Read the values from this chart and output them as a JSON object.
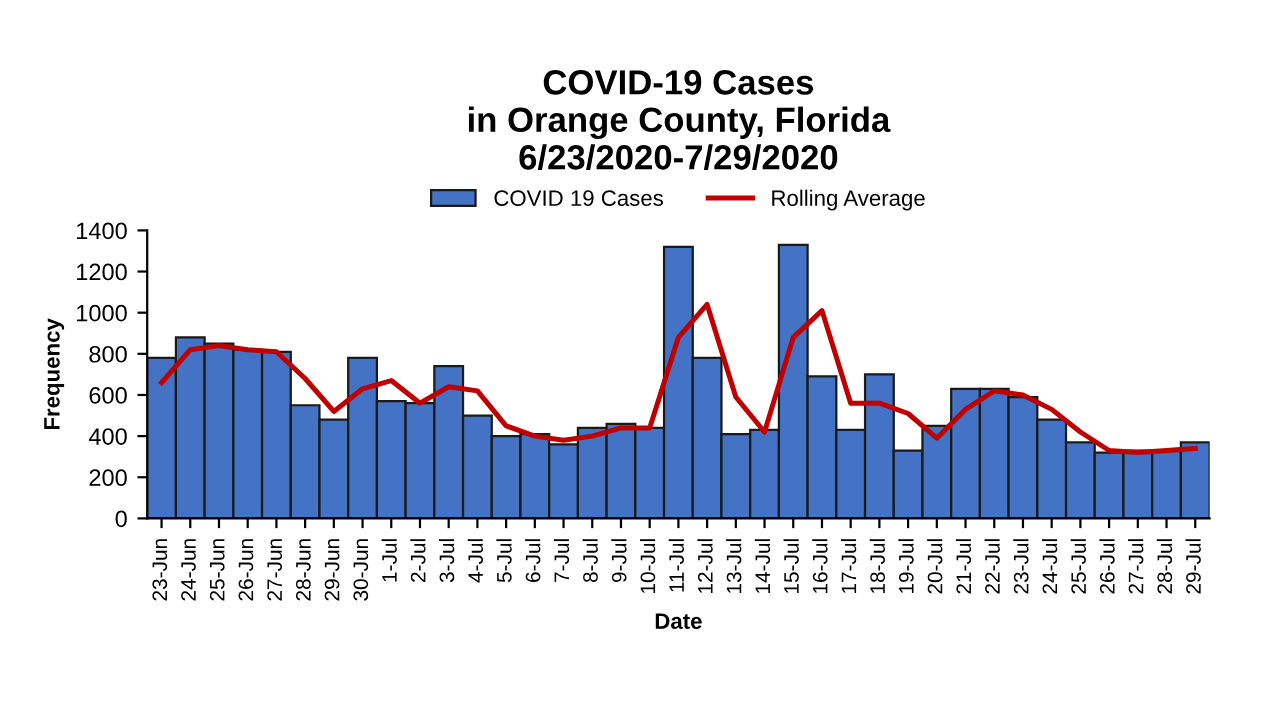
{
  "chart_data": {
    "type": "bar",
    "title": "COVID-19 Cases\nin Orange County, Florida\n6/23/2020-7/29/2020",
    "xlabel": "Date",
    "ylabel": "Frequency",
    "categories": [
      "23-Jun",
      "24-Jun",
      "25-Jun",
      "26-Jun",
      "27-Jun",
      "28-Jun",
      "29-Jun",
      "30-Jun",
      "1-Jul",
      "2-Jul",
      "3-Jul",
      "4-Jul",
      "5-Jul",
      "6-Jul",
      "7-Jul",
      "8-Jul",
      "9-Jul",
      "10-Jul",
      "11-Jul",
      "12-Jul",
      "13-Jul",
      "14-Jul",
      "15-Jul",
      "16-Jul",
      "17-Jul",
      "18-Jul",
      "19-Jul",
      "20-Jul",
      "21-Jul",
      "22-Jul",
      "23-Jul",
      "24-Jul",
      "25-Jul",
      "26-Jul",
      "27-Jul",
      "28-Jul",
      "29-Jul"
    ],
    "series": [
      {
        "name": "COVID 19 Cases",
        "color": "#4472c4",
        "values": [
          780,
          880,
          850,
          820,
          810,
          550,
          480,
          780,
          570,
          560,
          740,
          500,
          400,
          410,
          360,
          440,
          460,
          440,
          1320,
          780,
          410,
          430,
          1330,
          690,
          430,
          700,
          330,
          450,
          630,
          630,
          590,
          480,
          370,
          320,
          330,
          330,
          370
        ]
      },
      {
        "name": "Rolling Average",
        "type": "line",
        "color": "#c00000",
        "values": [
          660,
          820,
          840,
          820,
          810,
          680,
          520,
          630,
          670,
          560,
          640,
          620,
          450,
          400,
          380,
          400,
          440,
          440,
          880,
          1040,
          590,
          420,
          880,
          1010,
          560,
          560,
          510,
          390,
          530,
          620,
          600,
          530,
          420,
          330,
          320,
          330,
          340
        ]
      }
    ],
    "ylim": [
      0,
      1400
    ],
    "yticks": [
      0,
      200,
      400,
      600,
      800,
      1000,
      1200,
      1400
    ],
    "grid": false,
    "legend": "top",
    "marker": "none",
    "line_style": "solid"
  }
}
